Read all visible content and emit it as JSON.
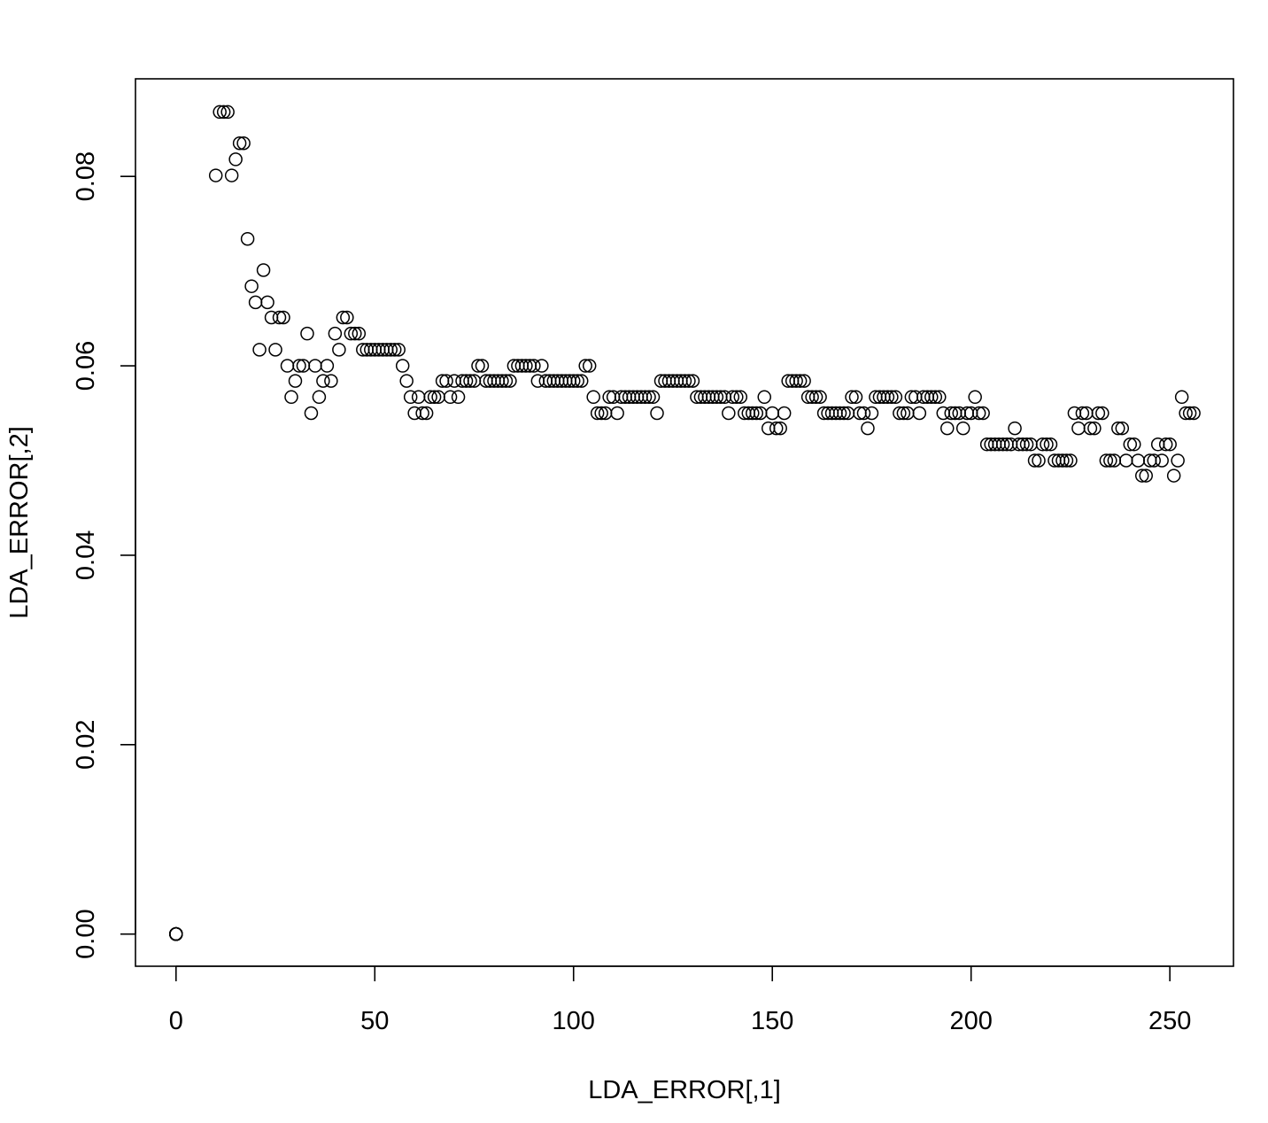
{
  "chart_data": {
    "type": "scatter",
    "title": "",
    "xlabel": "LDA_ERROR[,1]",
    "ylabel": "LDA_ERROR[,2]",
    "xlim": [
      -10.2,
      266
    ],
    "ylim": [
      -0.0034,
      0.0903
    ],
    "xticks": [
      0,
      50,
      100,
      150,
      200,
      250
    ],
    "xtick_labels": [
      "0",
      "50",
      "100",
      "150",
      "200",
      "250"
    ],
    "yticks": [
      0.0,
      0.02,
      0.04,
      0.06,
      0.08
    ],
    "ytick_labels": [
      "0.00",
      "0.02",
      "0.04",
      "0.06",
      "0.08"
    ],
    "grid": false,
    "marker": "open-circle",
    "series": [
      {
        "x": [
          0,
          0,
          0,
          0,
          0,
          0,
          0,
          0,
          0,
          10,
          11,
          12,
          13,
          14,
          15,
          16,
          17,
          18,
          19,
          20,
          21,
          22,
          23,
          24,
          25,
          26,
          27,
          28,
          29,
          30,
          31,
          32,
          33,
          34,
          35,
          36,
          37,
          38,
          39,
          40,
          41,
          42,
          43,
          44,
          45,
          46,
          47,
          48,
          49,
          50,
          51,
          52,
          53,
          54,
          55,
          56,
          57,
          58,
          59,
          60,
          61,
          62,
          63,
          64,
          65,
          66,
          67,
          68,
          69,
          70,
          71,
          72,
          73,
          74,
          75,
          76,
          77,
          78,
          79,
          80,
          81,
          82,
          83,
          84,
          85,
          86,
          87,
          88,
          89,
          90,
          91,
          92,
          93,
          94,
          95,
          96,
          97,
          98,
          99,
          100,
          101,
          102,
          103,
          104,
          105,
          106,
          107,
          108,
          109,
          110,
          111,
          112,
          113,
          114,
          115,
          116,
          117,
          118,
          119,
          120,
          121,
          122,
          123,
          124,
          125,
          126,
          127,
          128,
          129,
          130,
          131,
          132,
          133,
          134,
          135,
          136,
          137,
          138,
          139,
          140,
          141,
          142,
          143,
          144,
          145,
          146,
          147,
          148,
          149,
          150,
          151,
          152,
          153,
          154,
          155,
          156,
          157,
          158,
          159,
          160,
          161,
          162,
          163,
          164,
          165,
          166,
          167,
          168,
          169,
          170,
          171,
          172,
          173,
          174,
          175,
          176,
          177,
          178,
          179,
          180,
          181,
          182,
          183,
          184,
          185,
          186,
          187,
          188,
          189,
          190,
          191,
          192,
          193,
          194,
          195,
          196,
          197,
          198,
          199,
          200,
          201,
          202,
          203,
          204,
          205,
          206,
          207,
          208,
          209,
          210,
          211,
          212,
          213,
          214,
          215,
          216,
          217,
          218,
          219,
          220,
          221,
          222,
          223,
          224,
          225,
          226,
          227,
          228,
          229,
          230,
          231,
          232,
          233,
          234,
          235,
          236,
          237,
          238,
          239,
          240,
          241,
          242,
          243,
          244,
          245,
          246,
          247,
          248,
          249,
          250,
          251,
          252,
          253,
          254,
          255,
          256
        ],
        "y": [
          0,
          0,
          0,
          0,
          0,
          0,
          0,
          0,
          0,
          0.0801,
          0.0868,
          0.0868,
          0.0868,
          0.0801,
          0.0818,
          0.0835,
          0.0835,
          0.0734,
          0.0684,
          0.0667,
          0.0617,
          0.0701,
          0.0667,
          0.0651,
          0.0617,
          0.0651,
          0.0651,
          0.06,
          0.0567,
          0.0584,
          0.06,
          0.06,
          0.0634,
          0.055,
          0.06,
          0.0567,
          0.0584,
          0.06,
          0.0584,
          0.0634,
          0.0617,
          0.0651,
          0.0651,
          0.0634,
          0.0634,
          0.0634,
          0.0617,
          0.0617,
          0.0617,
          0.0617,
          0.0617,
          0.0617,
          0.0617,
          0.0617,
          0.0617,
          0.0617,
          0.06,
          0.0584,
          0.0567,
          0.055,
          0.0567,
          0.055,
          0.055,
          0.0567,
          0.0567,
          0.0567,
          0.0584,
          0.0584,
          0.0567,
          0.0584,
          0.0567,
          0.0584,
          0.0584,
          0.0584,
          0.0584,
          0.06,
          0.06,
          0.0584,
          0.0584,
          0.0584,
          0.0584,
          0.0584,
          0.0584,
          0.0584,
          0.06,
          0.06,
          0.06,
          0.06,
          0.06,
          0.06,
          0.0584,
          0.06,
          0.0584,
          0.0584,
          0.0584,
          0.0584,
          0.0584,
          0.0584,
          0.0584,
          0.0584,
          0.0584,
          0.0584,
          0.06,
          0.06,
          0.0567,
          0.055,
          0.055,
          0.055,
          0.0567,
          0.0567,
          0.055,
          0.0567,
          0.0567,
          0.0567,
          0.0567,
          0.0567,
          0.0567,
          0.0567,
          0.0567,
          0.0567,
          0.055,
          0.0584,
          0.0584,
          0.0584,
          0.0584,
          0.0584,
          0.0584,
          0.0584,
          0.0584,
          0.0584,
          0.0567,
          0.0567,
          0.0567,
          0.0567,
          0.0567,
          0.0567,
          0.0567,
          0.0567,
          0.055,
          0.0567,
          0.0567,
          0.0567,
          0.055,
          0.055,
          0.055,
          0.055,
          0.055,
          0.0567,
          0.0534,
          0.055,
          0.0534,
          0.0534,
          0.055,
          0.0584,
          0.0584,
          0.0584,
          0.0584,
          0.0584,
          0.0567,
          0.0567,
          0.0567,
          0.0567,
          0.055,
          0.055,
          0.055,
          0.055,
          0.055,
          0.055,
          0.055,
          0.0567,
          0.0567,
          0.055,
          0.055,
          0.0534,
          0.055,
          0.0567,
          0.0567,
          0.0567,
          0.0567,
          0.0567,
          0.0567,
          0.055,
          0.055,
          0.055,
          0.0567,
          0.0567,
          0.055,
          0.0567,
          0.0567,
          0.0567,
          0.0567,
          0.0567,
          0.055,
          0.0534,
          0.055,
          0.055,
          0.055,
          0.0534,
          0.055,
          0.055,
          0.0567,
          0.055,
          0.055,
          0.0517,
          0.0517,
          0.0517,
          0.0517,
          0.0517,
          0.0517,
          0.0517,
          0.0534,
          0.0517,
          0.0517,
          0.0517,
          0.0517,
          0.05,
          0.05,
          0.0517,
          0.0517,
          0.0517,
          0.05,
          0.05,
          0.05,
          0.05,
          0.05,
          0.055,
          0.0534,
          0.055,
          0.055,
          0.0534,
          0.0534,
          0.055,
          0.055,
          0.05,
          0.05,
          0.05,
          0.0534,
          0.0534,
          0.05,
          0.0517,
          0.0517,
          0.05,
          0.0484,
          0.0484,
          0.05,
          0.05,
          0.0517,
          0.05,
          0.0517,
          0.0517,
          0.0484,
          0.05,
          0.0567,
          0.055,
          0.055,
          0.055
        ]
      }
    ]
  }
}
